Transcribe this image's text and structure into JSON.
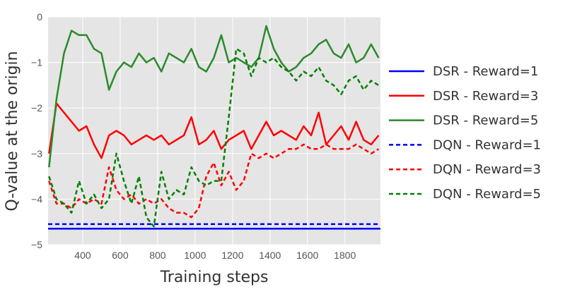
{
  "chart_data": {
    "type": "line",
    "title": "",
    "xlabel": "Training steps",
    "ylabel": "Q-value at the origin",
    "xlim": [
      215,
      1990
    ],
    "ylim": [
      -5,
      0
    ],
    "xticks": [
      400,
      600,
      800,
      1000,
      1200,
      1400,
      1600,
      1800
    ],
    "yticks": [
      0,
      -1,
      -2,
      -3,
      -4,
      -5
    ],
    "grid": true,
    "legend_position": "right-outside",
    "x": [
      220,
      260,
      300,
      340,
      380,
      420,
      460,
      500,
      540,
      580,
      620,
      660,
      700,
      740,
      780,
      820,
      860,
      900,
      940,
      980,
      1020,
      1060,
      1100,
      1140,
      1180,
      1220,
      1260,
      1300,
      1340,
      1380,
      1420,
      1460,
      1500,
      1540,
      1580,
      1620,
      1660,
      1700,
      1740,
      1780,
      1820,
      1860,
      1900,
      1940,
      1980
    ],
    "series": [
      {
        "name": "DSR - Reward=1",
        "color": "#0000ff",
        "style": "solid",
        "constant": -4.65
      },
      {
        "name": "DSR - Reward=3",
        "color": "#ff0000",
        "style": "solid",
        "values": [
          -3.0,
          -1.9,
          -2.1,
          -2.3,
          -2.5,
          -2.4,
          -2.8,
          -3.1,
          -2.6,
          -2.5,
          -2.6,
          -2.8,
          -2.7,
          -2.6,
          -2.7,
          -2.6,
          -2.8,
          -2.7,
          -2.6,
          -2.2,
          -2.8,
          -2.7,
          -2.5,
          -2.9,
          -2.7,
          -2.6,
          -2.5,
          -2.9,
          -2.6,
          -2.3,
          -2.6,
          -2.5,
          -2.6,
          -2.7,
          -2.4,
          -2.6,
          -2.1,
          -2.8,
          -2.6,
          -2.4,
          -2.7,
          -2.3,
          -2.7,
          -2.8,
          -2.6
        ]
      },
      {
        "name": "DSR - Reward=5",
        "color": "#2a8a2a",
        "style": "solid",
        "values": [
          -3.3,
          -1.8,
          -0.8,
          -0.3,
          -0.4,
          -0.4,
          -0.7,
          -0.8,
          -1.6,
          -1.2,
          -1.0,
          -1.1,
          -0.8,
          -1.0,
          -0.9,
          -1.2,
          -0.8,
          -0.9,
          -1.0,
          -0.7,
          -1.1,
          -1.2,
          -0.9,
          -0.4,
          -1.0,
          -0.9,
          -1.0,
          -1.1,
          -0.9,
          -0.2,
          -0.7,
          -1.0,
          -1.2,
          -1.1,
          -0.9,
          -0.8,
          -0.6,
          -0.5,
          -0.8,
          -0.9,
          -0.6,
          -1.0,
          -0.9,
          -0.6,
          -0.9
        ]
      },
      {
        "name": "DQN - Reward=1",
        "color": "#0000ff",
        "style": "dashed",
        "constant": -4.55
      },
      {
        "name": "DQN - Reward=3",
        "color": "#ff0000",
        "style": "dashed",
        "values": [
          -3.6,
          -4.1,
          -4.1,
          -4.2,
          -4.0,
          -4.1,
          -4.0,
          -4.1,
          -3.3,
          -3.8,
          -4.0,
          -3.9,
          -4.1,
          -4.0,
          -4.1,
          -4.0,
          -4.2,
          -4.3,
          -4.3,
          -4.4,
          -4.2,
          -3.5,
          -3.2,
          -3.7,
          -3.4,
          -3.8,
          -3.6,
          -3.0,
          -3.1,
          -3.0,
          -3.1,
          -3.0,
          -2.9,
          -2.9,
          -2.8,
          -2.9,
          -2.9,
          -2.8,
          -2.9,
          -2.9,
          -2.9,
          -2.8,
          -2.9,
          -3.0,
          -2.9
        ]
      },
      {
        "name": "DQN - Reward=5",
        "color": "#008000",
        "style": "dashed",
        "values": [
          -3.5,
          -4.0,
          -4.1,
          -4.3,
          -3.6,
          -4.1,
          -3.9,
          -4.2,
          -4.0,
          -3.0,
          -3.6,
          -4.1,
          -3.5,
          -4.4,
          -4.6,
          -3.4,
          -4.0,
          -3.8,
          -3.9,
          -3.3,
          -3.6,
          -3.7,
          -3.6,
          -3.6,
          -2.2,
          -0.7,
          -0.8,
          -1.3,
          -0.9,
          -1.0,
          -0.9,
          -1.1,
          -1.2,
          -1.4,
          -1.2,
          -1.3,
          -1.1,
          -1.4,
          -1.5,
          -1.7,
          -1.4,
          -1.3,
          -1.6,
          -1.4,
          -1.5
        ]
      }
    ],
    "colors": {
      "plot_background": "#e5e5e5",
      "grid": "#ffffff"
    }
  }
}
